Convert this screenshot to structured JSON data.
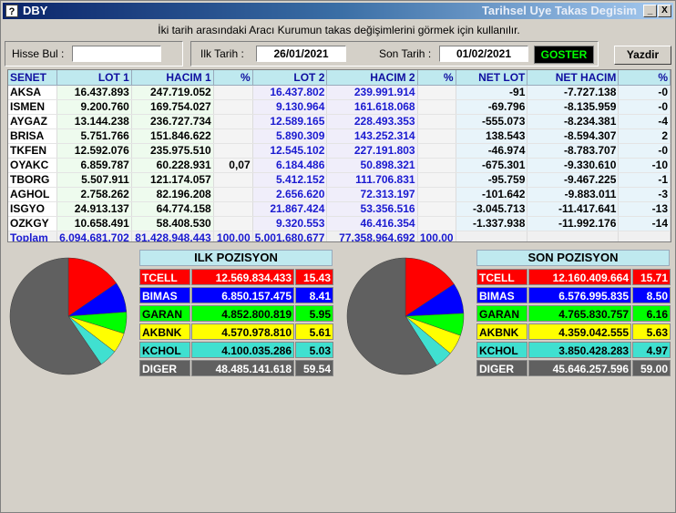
{
  "window": {
    "title": "DBY",
    "long_title": "Tarihsel Uye Takas Degisim",
    "icon_glyph": "?",
    "min_glyph": "_",
    "close_glyph": "X"
  },
  "info_text": "İki tarih arasındaki  Aracı Kurumun takas değişimlerini görmek için kullanılır.",
  "form": {
    "hisse_label": "Hisse Bul :",
    "hisse_value": "",
    "ilk_label": "Ilk Tarih :",
    "ilk_value": "26/01/2021",
    "son_label": "Son Tarih :",
    "son_value": "01/02/2021",
    "goster_label": "GOSTER",
    "yazdir_label": "Yazdir"
  },
  "grid": {
    "headers": [
      "SENET",
      "LOT 1",
      "HACIM 1",
      "%",
      "LOT 2",
      "HACIM 2",
      "%",
      "NET LOT",
      "NET HACIM",
      "%"
    ],
    "rows": [
      [
        "AKSA",
        "16.437.893",
        "247.719.052",
        "",
        "16.437.802",
        "239.991.914",
        "",
        "-91",
        "-7.727.138",
        "-0"
      ],
      [
        "ISMEN",
        "9.200.760",
        "169.754.027",
        "",
        "9.130.964",
        "161.618.068",
        "",
        "-69.796",
        "-8.135.959",
        "-0"
      ],
      [
        "AYGAZ",
        "13.144.238",
        "236.727.734",
        "",
        "12.589.165",
        "228.493.353",
        "",
        "-555.073",
        "-8.234.381",
        "-4"
      ],
      [
        "BRISA",
        "5.751.766",
        "151.846.622",
        "",
        "5.890.309",
        "143.252.314",
        "",
        "138.543",
        "-8.594.307",
        "2"
      ],
      [
        "TKFEN",
        "12.592.076",
        "235.975.510",
        "",
        "12.545.102",
        "227.191.803",
        "",
        "-46.974",
        "-8.783.707",
        "-0"
      ],
      [
        "OYAKC",
        "6.859.787",
        "60.228.931",
        "0,07",
        "6.184.486",
        "50.898.321",
        "",
        "-675.301",
        "-9.330.610",
        "-10"
      ],
      [
        "TBORG",
        "5.507.911",
        "121.174.057",
        "",
        "5.412.152",
        "111.706.831",
        "",
        "-95.759",
        "-9.467.225",
        "-1"
      ],
      [
        "AGHOL",
        "2.758.262",
        "82.196.208",
        "",
        "2.656.620",
        "72.313.197",
        "",
        "-101.642",
        "-9.883.011",
        "-3"
      ],
      [
        "ISGYO",
        "24.913.137",
        "64.774.158",
        "",
        "21.867.424",
        "53.356.516",
        "",
        "-3.045.713",
        "-11.417.641",
        "-13"
      ],
      [
        "OZKGY",
        "10.658.491",
        "58.408.530",
        "",
        "9.320.553",
        "46.416.354",
        "",
        "-1.337.938",
        "-11.992.176",
        "-14"
      ]
    ],
    "total": [
      "Toplam",
      "6.094.681.702",
      "81.428.948.443",
      "100,00",
      "5.001.680.677",
      "77.358.964.692",
      "100,00",
      "",
      "",
      ""
    ]
  },
  "ilk": {
    "title": "ILK POZISYON",
    "rows": [
      {
        "name": "TCELL",
        "value": "12.569.834.433",
        "pct": "15.43",
        "color": "#ff0000",
        "text": "#ffffff",
        "share": 15.43
      },
      {
        "name": "BIMAS",
        "value": "6.850.157.475",
        "pct": "8.41",
        "color": "#0000ff",
        "text": "#ffffff",
        "share": 8.41
      },
      {
        "name": "GARAN",
        "value": "4.852.800.819",
        "pct": "5.95",
        "color": "#00ff00",
        "text": "#000000",
        "share": 5.95
      },
      {
        "name": "AKBNK",
        "value": "4.570.978.810",
        "pct": "5.61",
        "color": "#ffff00",
        "text": "#000000",
        "share": 5.61
      },
      {
        "name": "KCHOL",
        "value": "4.100.035.286",
        "pct": "5.03",
        "color": "#40e0d0",
        "text": "#000000",
        "share": 5.03
      },
      {
        "name": "DIGER",
        "value": "48.485.141.618",
        "pct": "59.54",
        "color": "#606060",
        "text": "#ffffff",
        "share": 59.54
      }
    ]
  },
  "son": {
    "title": "SON POZISYON",
    "rows": [
      {
        "name": "TCELL",
        "value": "12.160.409.664",
        "pct": "15.71",
        "color": "#ff0000",
        "text": "#ffffff",
        "share": 15.71
      },
      {
        "name": "BIMAS",
        "value": "6.576.995.835",
        "pct": "8.50",
        "color": "#0000ff",
        "text": "#ffffff",
        "share": 8.5
      },
      {
        "name": "GARAN",
        "value": "4.765.830.757",
        "pct": "6.16",
        "color": "#00ff00",
        "text": "#000000",
        "share": 6.16
      },
      {
        "name": "AKBNK",
        "value": "4.359.042.555",
        "pct": "5.63",
        "color": "#ffff00",
        "text": "#000000",
        "share": 5.63
      },
      {
        "name": "KCHOL",
        "value": "3.850.428.283",
        "pct": "4.97",
        "color": "#40e0d0",
        "text": "#000000",
        "share": 4.97
      },
      {
        "name": "DIGER",
        "value": "45.646.257.596",
        "pct": "59.00",
        "color": "#606060",
        "text": "#ffffff",
        "share": 59.0
      }
    ]
  }
}
